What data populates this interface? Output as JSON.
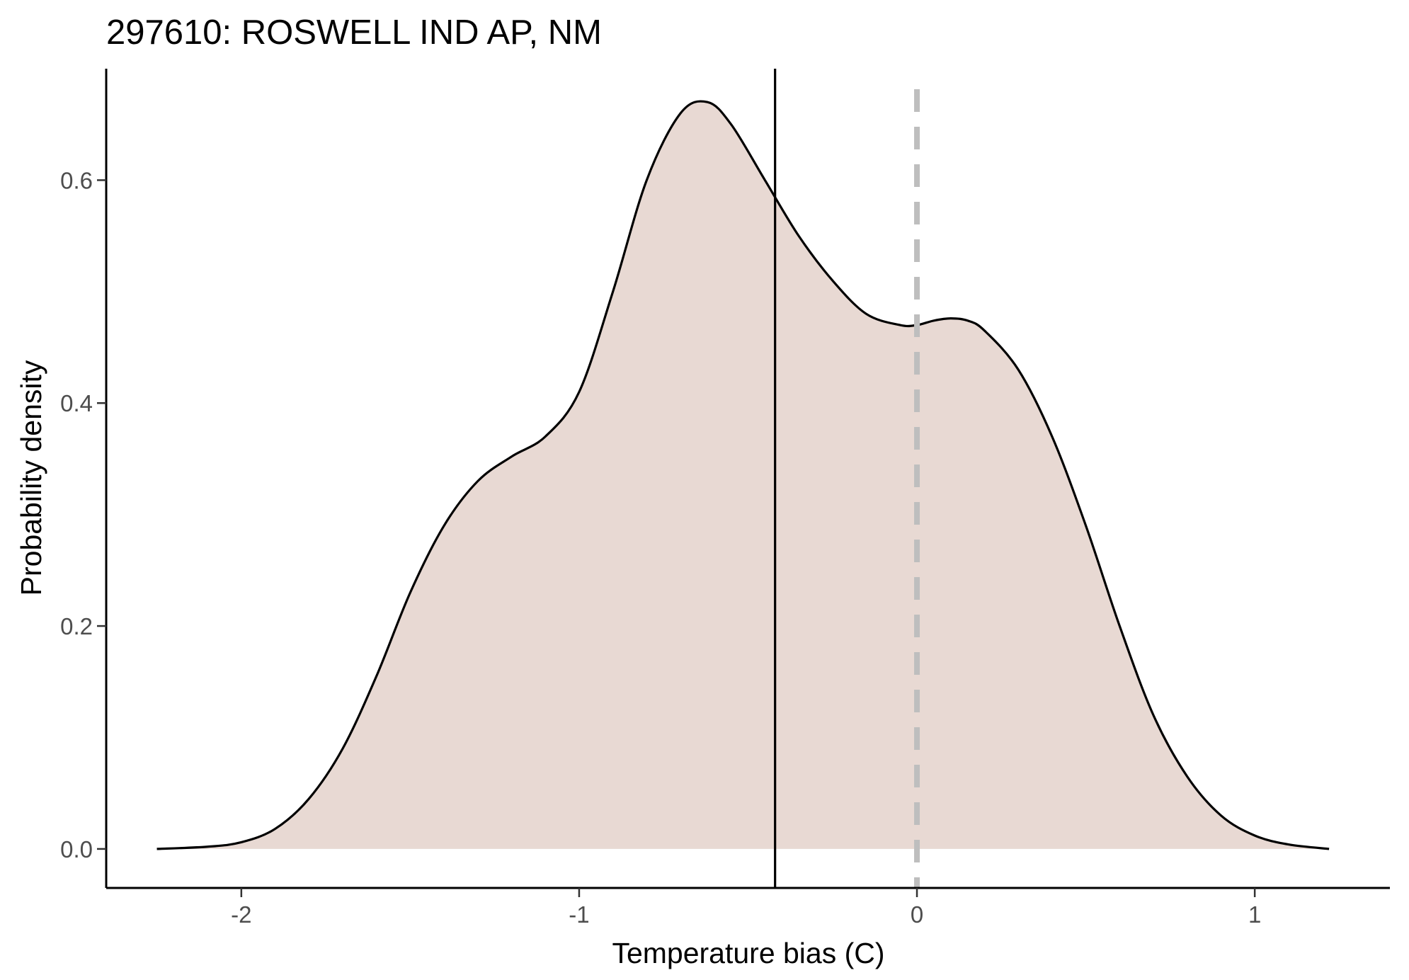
{
  "chart_data": {
    "type": "area",
    "title": "297610: ROSWELL IND AP, NM",
    "xlabel": "Temperature bias (C)",
    "ylabel": "Probability density",
    "xlim": [
      -2.4,
      1.4
    ],
    "ylim": [
      -0.035,
      0.7
    ],
    "x_ticks": [
      -2,
      -1,
      0,
      1
    ],
    "x_tick_labels": [
      "-2",
      "-1",
      "0",
      "1"
    ],
    "y_ticks": [
      0.0,
      0.2,
      0.4,
      0.6
    ],
    "y_tick_labels": [
      "0.0",
      "0.2",
      "0.4",
      "0.6"
    ],
    "grid": false,
    "series": [
      {
        "fill_color": "#e8d9d3",
        "line_color": "#000000",
        "x": [
          -2.25,
          -2.1,
          -2.0,
          -1.9,
          -1.8,
          -1.7,
          -1.6,
          -1.5,
          -1.4,
          -1.3,
          -1.2,
          -1.1,
          -1.0,
          -0.9,
          -0.8,
          -0.7,
          -0.62,
          -0.55,
          -0.45,
          -0.35,
          -0.25,
          -0.15,
          -0.05,
          0.0,
          0.05,
          0.1,
          0.15,
          0.2,
          0.3,
          0.4,
          0.5,
          0.6,
          0.7,
          0.8,
          0.9,
          1.0,
          1.1,
          1.22
        ],
        "y": [
          0.0,
          0.002,
          0.006,
          0.018,
          0.045,
          0.09,
          0.155,
          0.23,
          0.29,
          0.33,
          0.352,
          0.37,
          0.41,
          0.5,
          0.6,
          0.66,
          0.67,
          0.65,
          0.6,
          0.55,
          0.51,
          0.48,
          0.47,
          0.47,
          0.474,
          0.476,
          0.474,
          0.465,
          0.43,
          0.37,
          0.29,
          0.2,
          0.12,
          0.065,
          0.03,
          0.012,
          0.004,
          0.0
        ]
      }
    ],
    "reference_lines": [
      {
        "x": -0.42,
        "style": "solid",
        "color": "#000000"
      },
      {
        "x": 0.0,
        "style": "dashed",
        "color": "#bebebe"
      }
    ]
  }
}
